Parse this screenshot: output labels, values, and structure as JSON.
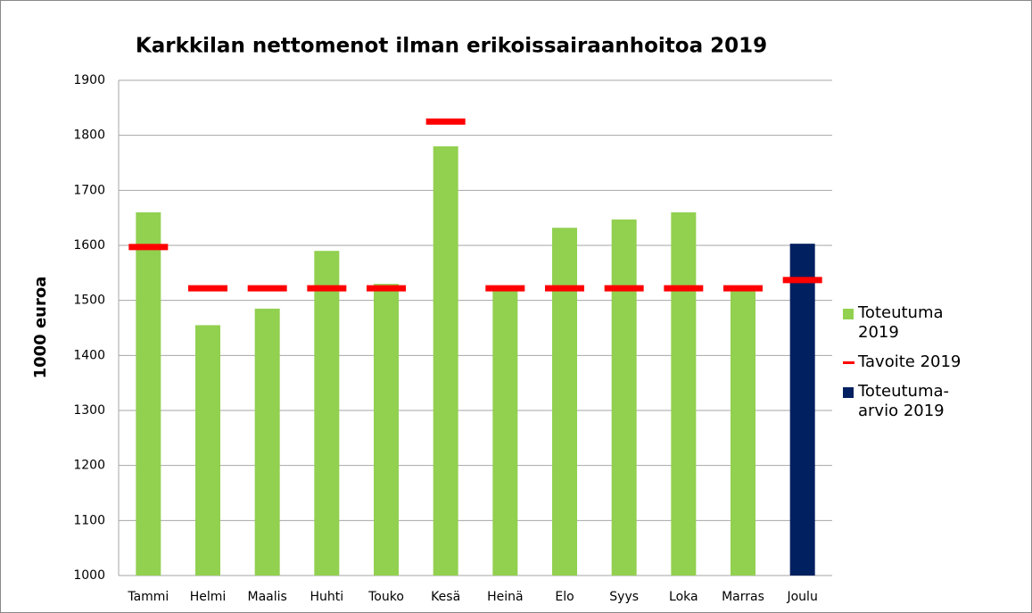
{
  "chart_data": {
    "type": "bar",
    "title": "Karkkilan nettomenot ilman erikoissairaanhoitoa 2019",
    "y_label": "1000 euroa",
    "categories": [
      "Tammi",
      "Helmi",
      "Maalis",
      "Huhti",
      "Touko",
      "Kesä",
      "Heinä",
      "Elo",
      "Syys",
      "Loka",
      "Marras",
      "Joulu"
    ],
    "series": [
      {
        "name": "Toteutuma 2019",
        "color": "#92d050",
        "style": "bar",
        "values": [
          1660,
          1455,
          1485,
          1590,
          1530,
          1780,
          1520,
          1632,
          1647,
          1660,
          1520,
          null
        ]
      },
      {
        "name": "Tavoite 2019",
        "color": "#ff0000",
        "style": "dash",
        "values": [
          1597,
          1522,
          1522,
          1522,
          1522,
          1825,
          1522,
          1522,
          1522,
          1522,
          1522,
          1537
        ]
      },
      {
        "name": "Toteutuma-arvio 2019",
        "color": "#002060",
        "style": "bar",
        "values": [
          null,
          null,
          null,
          null,
          null,
          null,
          null,
          null,
          null,
          null,
          null,
          1603
        ]
      }
    ],
    "ylim": [
      1000,
      1900
    ],
    "yticks": [
      1000,
      1100,
      1200,
      1300,
      1400,
      1500,
      1600,
      1700,
      1800,
      1900
    ],
    "grid": true,
    "legend": "right"
  }
}
